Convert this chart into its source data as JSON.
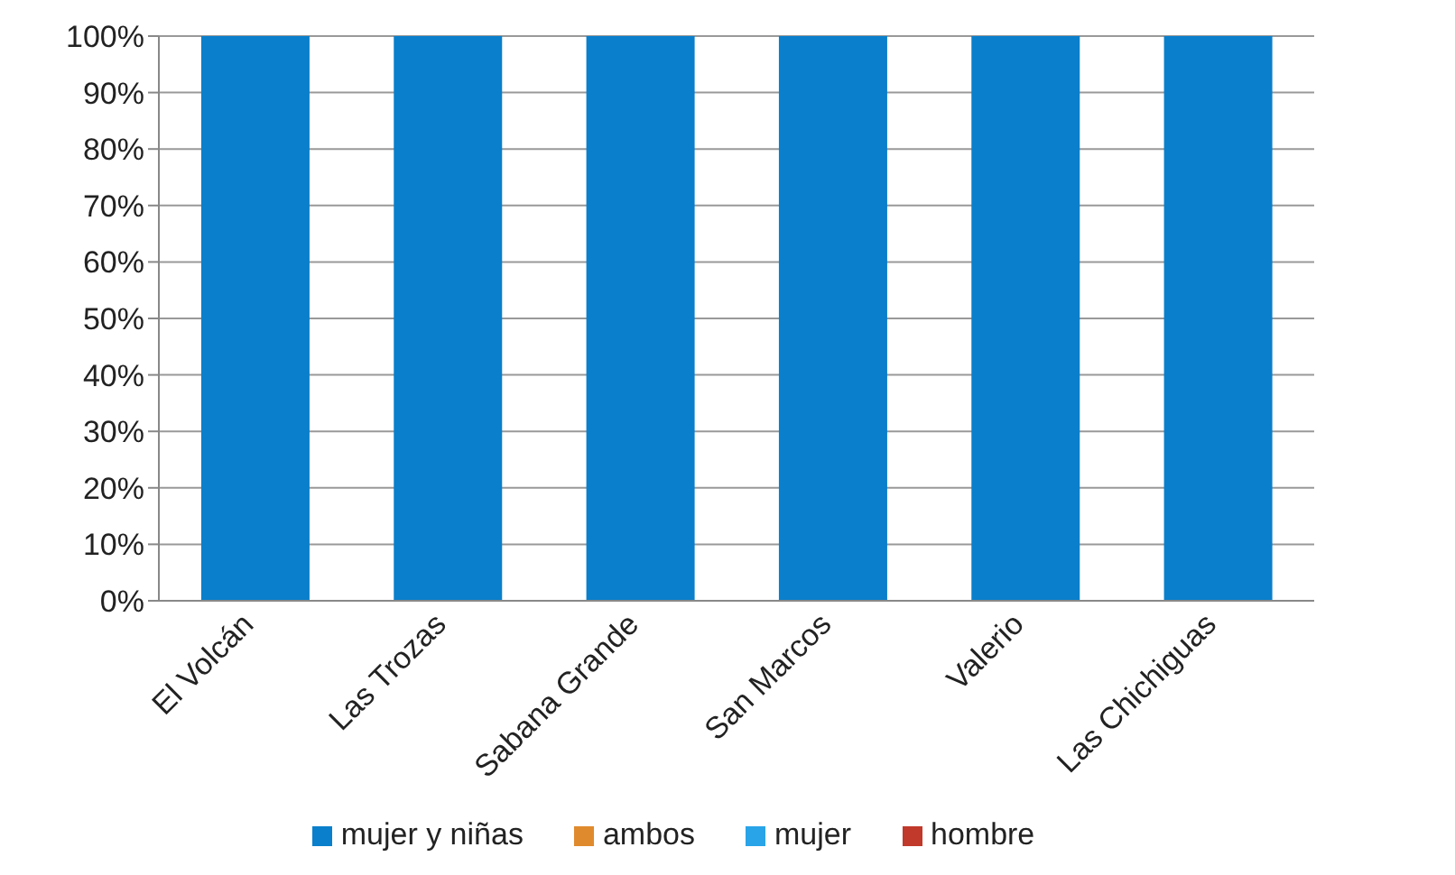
{
  "chart_data": {
    "type": "bar",
    "stacked": true,
    "categories": [
      "El Volcán",
      "Las Trozas",
      "Sabana Grande",
      "San Marcos",
      "Valerio",
      "Las Chichiguas"
    ],
    "series": [
      {
        "name": "mujer y niñas",
        "color": "#0a7fcb",
        "values": [
          100,
          100,
          100,
          100,
          100,
          100
        ]
      },
      {
        "name": "ambos",
        "color": "#e08a2e",
        "values": [
          0,
          0,
          0,
          0,
          0,
          0
        ]
      },
      {
        "name": "mujer",
        "color": "#2aa4e8",
        "values": [
          0,
          0,
          0,
          0,
          0,
          0
        ]
      },
      {
        "name": "hombre",
        "color": "#c0392b",
        "values": [
          0,
          0,
          0,
          0,
          0,
          0
        ]
      }
    ],
    "ylim": [
      0,
      100
    ],
    "yticks": [
      {
        "value": 0,
        "label": "0%"
      },
      {
        "value": 10,
        "label": "10%"
      },
      {
        "value": 20,
        "label": "20%"
      },
      {
        "value": 30,
        "label": "30%"
      },
      {
        "value": 40,
        "label": "40%"
      },
      {
        "value": 50,
        "label": "50%"
      },
      {
        "value": 60,
        "label": "60%"
      },
      {
        "value": 70,
        "label": "70%"
      },
      {
        "value": 80,
        "label": "80%"
      },
      {
        "value": 90,
        "label": "90%"
      },
      {
        "value": 100,
        "label": "100%"
      }
    ],
    "grid": "y",
    "legend": "bottom"
  }
}
